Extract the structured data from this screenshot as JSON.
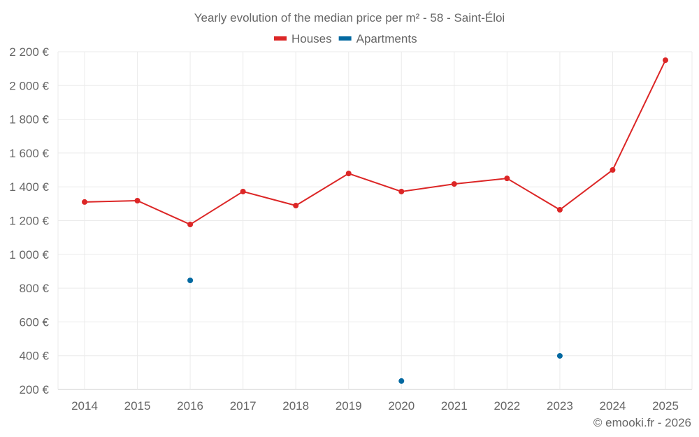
{
  "chart_data": {
    "type": "line",
    "title": "Yearly evolution of the median price per m² - 58 - Saint-Éloi",
    "xlabel": "",
    "ylabel": "",
    "categories": [
      "2014",
      "2015",
      "2016",
      "2017",
      "2018",
      "2019",
      "2020",
      "2021",
      "2022",
      "2023",
      "2024",
      "2025"
    ],
    "ylim": [
      200,
      2200
    ],
    "yticks": [
      200,
      400,
      600,
      800,
      1000,
      1200,
      1400,
      1600,
      1800,
      2000,
      2200
    ],
    "ytick_labels": [
      "200 €",
      "400 €",
      "600 €",
      "800 €",
      "1 000 €",
      "1 200 €",
      "1 400 €",
      "1 600 €",
      "1 800 €",
      "2 000 €",
      "2 200 €"
    ],
    "grid": true,
    "legend_placement": "top-center",
    "series": [
      {
        "name": "Houses",
        "color": "#dc2626",
        "values": [
          1310,
          1318,
          1177,
          1372,
          1289,
          1479,
          1372,
          1417,
          1450,
          1264,
          1500,
          2150
        ]
      },
      {
        "name": "Apartments",
        "color": "#0369a1",
        "values": [
          null,
          null,
          846,
          null,
          null,
          null,
          250,
          null,
          null,
          399,
          null,
          null
        ]
      }
    ],
    "credit": "© emooki.fr - 2026"
  }
}
